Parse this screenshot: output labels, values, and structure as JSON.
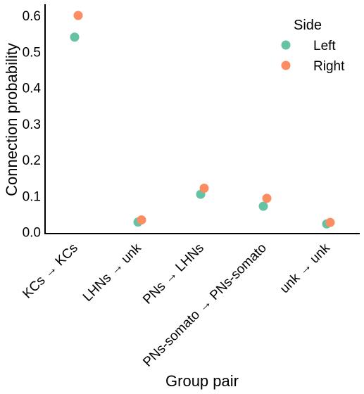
{
  "chart_data": {
    "type": "scatter",
    "title": "",
    "xlabel": "Group pair",
    "ylabel": "Connection probability",
    "categories": [
      "KCs → KCs",
      "LHNs → unk",
      "PNs → LHNs",
      "PNs-somato → PNs-somato",
      "unk → unk"
    ],
    "yticks": [
      "0.0",
      "0.1",
      "0.2",
      "0.3",
      "0.4",
      "0.5",
      "0.6"
    ],
    "ylim": [
      -0.005,
      0.625
    ],
    "grid": false,
    "legend": {
      "title": "Side",
      "position": "top-right"
    },
    "series": [
      {
        "name": "Left",
        "color": "#66c2a5",
        "values": [
          0.54,
          0.027,
          0.104,
          0.071,
          0.022
        ]
      },
      {
        "name": "Right",
        "color": "#fc8d62",
        "values": [
          0.6,
          0.033,
          0.121,
          0.093,
          0.026
        ]
      }
    ]
  }
}
